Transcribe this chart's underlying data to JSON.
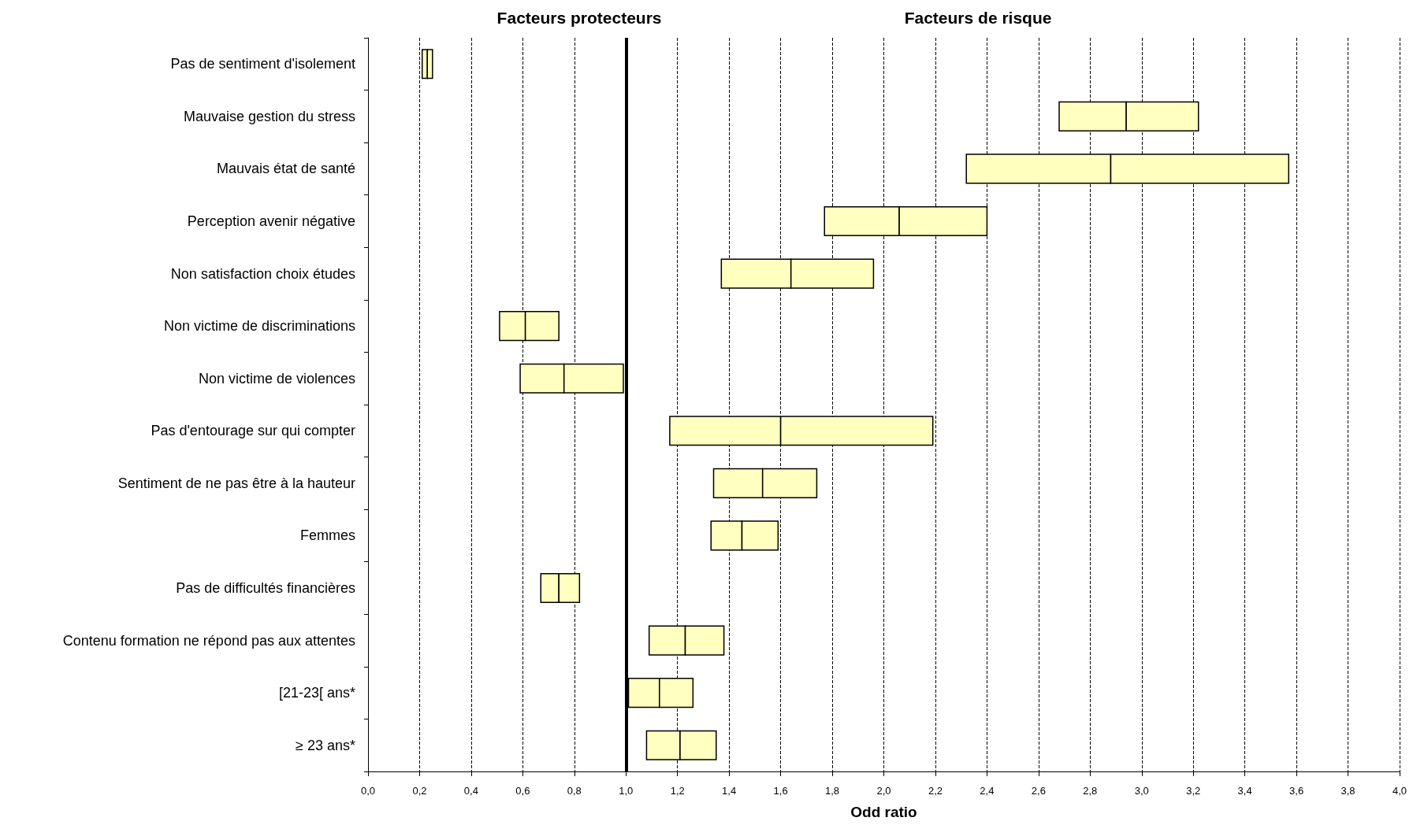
{
  "chart_data": {
    "type": "bar",
    "orientation": "horizontal",
    "categories": [
      "Pas de sentiment d'isolement",
      "Mauvaise gestion du stress",
      "Mauvais état de santé",
      "Perception avenir négative",
      "Non satisfaction choix études",
      "Non victime de discriminations",
      "Non victime de violences",
      "Pas d'entourage sur qui compter",
      "Sentiment de ne pas être à la hauteur",
      "Femmes",
      "Pas de difficultés financières",
      "Contenu formation ne répond pas aux attentes",
      "[21-23[ ans*",
      "≥ 23 ans*"
    ],
    "series": [
      {
        "color": "#ffffc0",
        "base": [
          0.21,
          2.68,
          2.32,
          1.77,
          1.37,
          0.51,
          0.59,
          1.17,
          1.34,
          1.33,
          0.67,
          1.09,
          1.01,
          1.08
        ],
        "values": [
          0.02,
          0.26,
          0.56,
          0.29,
          0.27,
          0.1,
          0.17,
          0.43,
          0.19,
          0.12,
          0.07,
          0.14,
          0.12,
          0.13
        ]
      },
      {
        "color": "#ffffc0",
        "base": [
          0.23,
          2.94,
          2.88,
          2.06,
          1.64,
          0.61,
          0.76,
          1.6,
          1.53,
          1.45,
          0.74,
          1.23,
          1.13,
          1.21
        ],
        "values": [
          0.02,
          0.28,
          0.69,
          0.34,
          0.32,
          0.13,
          0.23,
          0.59,
          0.21,
          0.14,
          0.08,
          0.15,
          0.13,
          0.14
        ]
      }
    ],
    "xlabel": "Odd ratio",
    "annotations": [
      "Facteurs protecteurs",
      "Facteurs de risque"
    ],
    "xlim": [
      0,
      4
    ],
    "xticks": [
      {
        "value": 0,
        "label": "0,0"
      },
      {
        "value": 0.2,
        "label": "0,2"
      },
      {
        "value": 0.4,
        "label": "0,4"
      },
      {
        "value": 0.6,
        "label": "0,6"
      },
      {
        "value": 0.8,
        "label": "0,8"
      },
      {
        "value": 1,
        "label": "1,0"
      },
      {
        "value": 1.2,
        "label": "1,2"
      },
      {
        "value": 1.4,
        "label": "1,4"
      },
      {
        "value": 1.6,
        "label": "1,6"
      },
      {
        "value": 1.8,
        "label": "1,8"
      },
      {
        "value": 2,
        "label": "2,0"
      },
      {
        "value": 2.2,
        "label": "2,2"
      },
      {
        "value": 2.4,
        "label": "2,4"
      },
      {
        "value": 2.6,
        "label": "2,6"
      },
      {
        "value": 2.8,
        "label": "2,8"
      },
      {
        "value": 3,
        "label": "3,0"
      },
      {
        "value": 3.2,
        "label": "3,2"
      },
      {
        "value": 3.4,
        "label": "3,4"
      },
      {
        "value": 3.6,
        "label": "3,6"
      },
      {
        "value": 3.8,
        "label": "3,8"
      },
      {
        "value": 4,
        "label": "4,0"
      }
    ],
    "grid": "x",
    "line_style": "dashed",
    "ref_lines": [
      {
        "axis": "x",
        "value": 1,
        "color": "#000000",
        "line_style": "solid"
      }
    ]
  }
}
